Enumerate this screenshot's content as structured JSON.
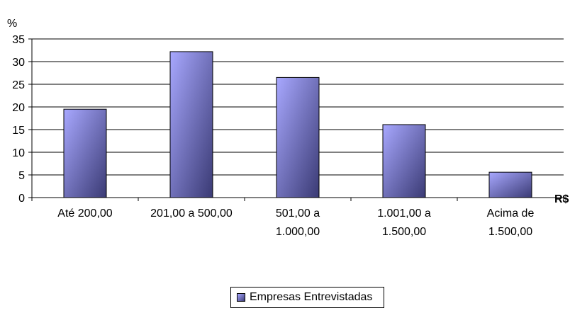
{
  "chart_data": {
    "type": "bar",
    "ylabel": "%",
    "xlabel": "R$",
    "ylim": [
      0,
      35
    ],
    "yticks": [
      0,
      5,
      10,
      15,
      20,
      25,
      30,
      35
    ],
    "grid": true,
    "legend_position": "bottom",
    "categories": [
      [
        "Até 200,00"
      ],
      [
        "201,00 a 500,00"
      ],
      [
        "501,00 a",
        "1.000,00"
      ],
      [
        "1.001,00 a",
        "1.500,00"
      ],
      [
        "Acima de",
        "1.500,00"
      ]
    ],
    "series": [
      {
        "name": "Empresas Entrevistadas",
        "values": [
          19.5,
          32.2,
          26.5,
          16.1,
          5.6
        ]
      }
    ],
    "colors": {
      "bar_light": "#a8a8ff",
      "bar_dark": "#3a3a74",
      "grid": "#000000"
    }
  }
}
